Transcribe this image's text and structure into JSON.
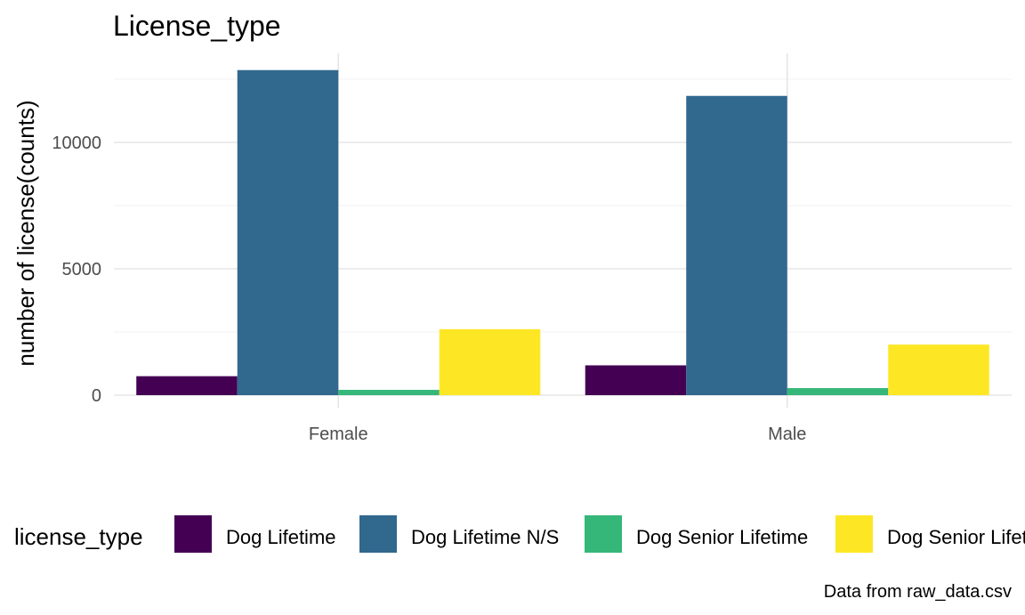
{
  "chart_data": {
    "type": "bar",
    "title": "License_type",
    "xlabel": "",
    "ylabel": "number of license(counts)",
    "caption": "Data from raw_data.csv",
    "categories": [
      "Female",
      "Male"
    ],
    "ylim": [
      0,
      13000
    ],
    "yticks": [
      0,
      5000,
      10000
    ],
    "grid": true,
    "legend": {
      "title": "license_type",
      "position": "bottom"
    },
    "series": [
      {
        "name": "Dog Lifetime",
        "color": "#440154",
        "values": [
          750,
          1180
        ]
      },
      {
        "name": "Dog Lifetime N/S",
        "color": "#31688E",
        "values": [
          12860,
          11840
        ]
      },
      {
        "name": "Dog Senior Lifetime",
        "color": "#35B779",
        "values": [
          210,
          280
        ]
      },
      {
        "name": "Dog Senior Lifetime N/S",
        "color": "#FDE725",
        "values": [
          2610,
          2000
        ]
      }
    ]
  }
}
